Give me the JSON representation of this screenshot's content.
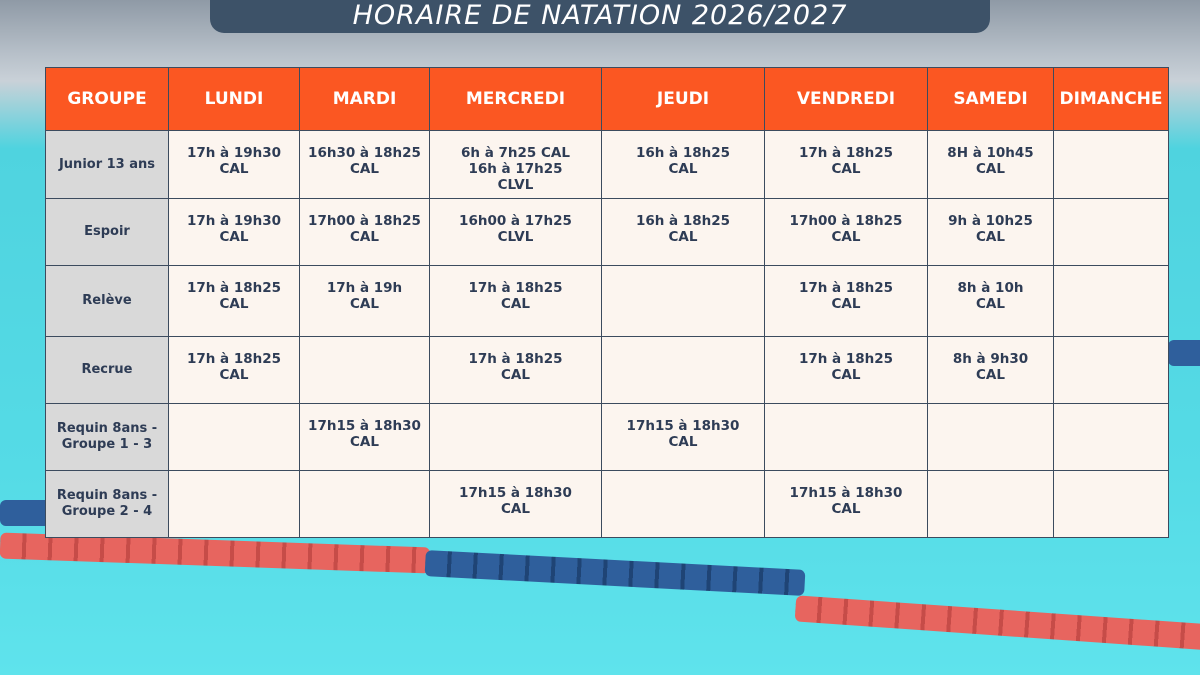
{
  "title": "HORAIRE DE NATATION 2026/2027",
  "table": {
    "header": [
      "GROUPE",
      "LUNDI",
      "MARDI",
      "MERCREDI",
      "JEUDI",
      "VENDREDI",
      "SAMEDI",
      "DIMANCHE"
    ],
    "rows": [
      [
        "Junior 13 ans",
        [
          "17h à 19h30",
          "CAL"
        ],
        [
          "16h30 à 18h25",
          "CAL"
        ],
        [
          "6h à 7h25 CAL",
          "16h à 17h25",
          "CLVL"
        ],
        [
          "16h à 18h25",
          "CAL"
        ],
        [
          "17h à 18h25",
          "CAL"
        ],
        [
          "8H à 10h45",
          "CAL"
        ],
        []
      ],
      [
        "Espoir",
        [
          "17h à 19h30",
          "CAL"
        ],
        [
          "17h00 à 18h25",
          "CAL"
        ],
        [
          "16h00 à 17h25",
          "CLVL"
        ],
        [
          "16h à 18h25",
          "CAL"
        ],
        [
          "17h00 à 18h25",
          "CAL"
        ],
        [
          "9h à 10h25",
          "CAL"
        ],
        []
      ],
      [
        "Relève",
        [
          "17h à 18h25",
          "CAL"
        ],
        [
          "17h à 19h",
          "CAL"
        ],
        [
          "17h à 18h25",
          "CAL"
        ],
        [],
        [
          "17h à 18h25",
          "CAL"
        ],
        [
          "8h à 10h",
          "CAL"
        ],
        []
      ],
      [
        "Recrue",
        [
          "17h à 18h25",
          "CAL"
        ],
        [],
        [
          "17h à 18h25",
          "CAL"
        ],
        [],
        [
          "17h à 18h25",
          "CAL"
        ],
        [
          "8h à 9h30",
          "CAL"
        ],
        []
      ],
      [
        "Requin 8ans - Groupe 1 - 3",
        [],
        [
          "17h15 à 18h30",
          "CAL"
        ],
        [],
        [
          "17h15 à 18h30",
          "CAL"
        ],
        [],
        [],
        []
      ],
      [
        "Requin 8ans - Groupe 2 - 4",
        [],
        [],
        [
          "17h15 à 18h30",
          "CAL"
        ],
        [],
        [
          "17h15 à 18h30",
          "CAL"
        ],
        [],
        []
      ]
    ]
  }
}
